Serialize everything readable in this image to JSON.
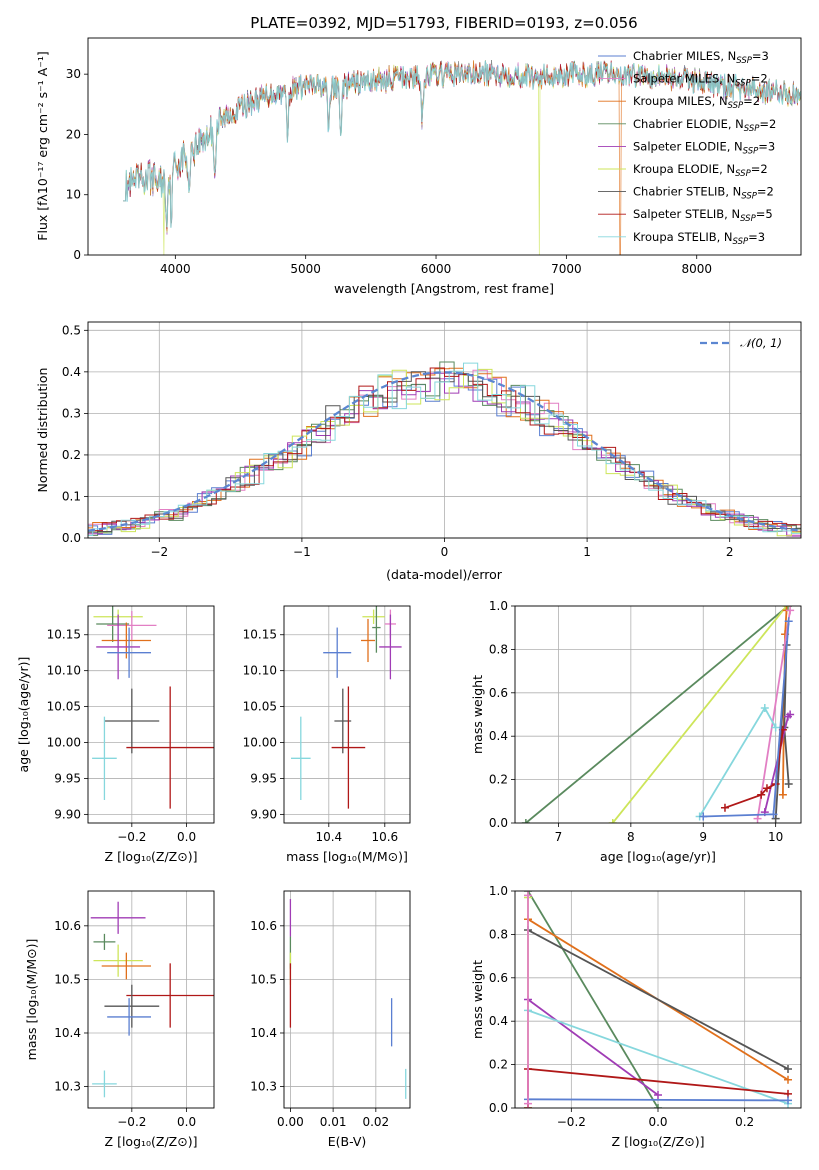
{
  "colors": {
    "chabrier_miles": "#5b7fd1",
    "salpeter_miles": "#e27fc4",
    "kroupa_miles": "#e0701c",
    "chabrier_elodie": "#5a8a5e",
    "salpeter_elodie": "#a03cb5",
    "kroupa_elodie": "#cde55a",
    "chabrier_stelib": "#555555",
    "salpeter_stelib": "#b01818",
    "kroupa_stelib": "#86d7dd",
    "normal": "#5b86d1"
  },
  "chart_data": [
    {
      "id": "spectrum",
      "type": "line",
      "title": "PLATE=0392, MJD=51793, FIBERID=0193, z=0.056",
      "xlabel": "wavelength [Angstrom, rest frame]",
      "ylabel": "Flux [fλ10⁻¹⁷ erg cm⁻² s⁻¹ A⁻¹]",
      "xlim": [
        3330,
        8800
      ],
      "ylim": [
        0,
        36
      ],
      "xticks": [
        "4000",
        "5000",
        "6000",
        "7000",
        "8000"
      ],
      "yticks": [
        "0",
        "10",
        "20",
        "30"
      ],
      "grid": false,
      "legend_position": "top-right",
      "legend": [
        "Chabrier MILES, N_SSP=3",
        "Salpeter MILES, N_SSP=2",
        "Kroupa MILES, N_SSP=2",
        "Chabrier ELODIE, N_SSP=2",
        "Salpeter ELODIE, N_SSP=3",
        "Kroupa ELODIE, N_SSP=2",
        "Chabrier STELIB, N_SSP=2",
        "Salpeter STELIB, N_SSP=5",
        "Kroupa STELIB, N_SSP=3"
      ],
      "continuum": [
        [
          3600,
          11
        ],
        [
          3700,
          12
        ],
        [
          3800,
          13
        ],
        [
          3900,
          12
        ],
        [
          4000,
          15
        ],
        [
          4100,
          17
        ],
        [
          4200,
          19
        ],
        [
          4300,
          21
        ],
        [
          4400,
          23
        ],
        [
          4500,
          24.5
        ],
        [
          4600,
          25.5
        ],
        [
          4700,
          26.5
        ],
        [
          4800,
          27
        ],
        [
          4900,
          27.5
        ],
        [
          5000,
          28
        ],
        [
          5100,
          28
        ],
        [
          5200,
          27.5
        ],
        [
          5300,
          28
        ],
        [
          5400,
          28.5
        ],
        [
          5500,
          29
        ],
        [
          5600,
          29
        ],
        [
          5700,
          29.5
        ],
        [
          5800,
          29.5
        ],
        [
          5900,
          29.5
        ],
        [
          6000,
          30
        ],
        [
          6200,
          30
        ],
        [
          6400,
          30
        ],
        [
          6600,
          30
        ],
        [
          6800,
          29.5
        ],
        [
          7000,
          30
        ],
        [
          7200,
          30
        ],
        [
          7400,
          30
        ],
        [
          7600,
          30
        ],
        [
          7800,
          29.5
        ],
        [
          8000,
          29
        ],
        [
          8200,
          28
        ],
        [
          8400,
          27.5
        ],
        [
          8600,
          27
        ],
        [
          8800,
          26.5
        ]
      ],
      "absorption_lines": [
        3934,
        3969,
        4102,
        4304,
        4861,
        5175,
        5270,
        5893
      ],
      "masked_dips": [
        {
          "series": "kroupa_elodie",
          "x": 3912,
          "y": 0
        },
        {
          "series": "kroupa_elodie",
          "x": 6790,
          "y": 0
        },
        {
          "series": "kroupa_miles",
          "x": 7413,
          "y": 0
        }
      ]
    },
    {
      "id": "residuals",
      "type": "histogram",
      "xlabel": "(data-model)/error",
      "ylabel": "Normed distribution",
      "xlim": [
        -2.5,
        2.5
      ],
      "ylim": [
        0,
        0.52
      ],
      "xticks": [
        "−2",
        "−1",
        "0",
        "1",
        "2"
      ],
      "yticks": [
        "0.0",
        "0.1",
        "0.2",
        "0.3",
        "0.4",
        "0.5"
      ],
      "grid": true,
      "bin_width": 0.1,
      "legend_position": "top-right",
      "legend": [
        "𝒩(0, 1)"
      ]
    },
    {
      "id": "age_vs_Z",
      "type": "errorbar",
      "xlabel": "Z [log₁₀(Z/Z⊙)]",
      "ylabel": "age  [log₁₀(age/yr)]",
      "xlim": [
        -0.36,
        0.1
      ],
      "ylim": [
        9.888,
        10.19
      ],
      "xticks": [
        {
          "v": -0.2,
          "t": "−0.2"
        },
        {
          "v": 0.0,
          "t": "0.0"
        }
      ],
      "yticks": [
        {
          "v": 9.9,
          "t": "9.90"
        },
        {
          "v": 9.95,
          "t": "9.95"
        },
        {
          "v": 10.0,
          "t": "10.00"
        },
        {
          "v": 10.05,
          "t": "10.05"
        },
        {
          "v": 10.1,
          "t": "10.10"
        },
        {
          "v": 10.15,
          "t": "10.15"
        }
      ],
      "points": [
        {
          "s": "kroupa_elodie",
          "x": -0.25,
          "xe": 0.09,
          "y": 10.175,
          "ye": 0.01
        },
        {
          "s": "chabrier_elodie",
          "x": -0.27,
          "xe": 0.06,
          "y": 10.165,
          "ye": 0.025
        },
        {
          "s": "salpeter_miles",
          "x": -0.2,
          "xe": 0.09,
          "y": 10.163,
          "ye": 0.02
        },
        {
          "s": "kroupa_miles",
          "x": -0.22,
          "xe": 0.09,
          "y": 10.142,
          "ye": 0.025
        },
        {
          "s": "salpeter_elodie",
          "x": -0.25,
          "xe": 0.08,
          "y": 10.133,
          "ye": 0.045
        },
        {
          "s": "chabrier_miles",
          "x": -0.21,
          "xe": 0.08,
          "y": 10.125,
          "ye": 0.035
        },
        {
          "s": "chabrier_stelib",
          "x": -0.2,
          "xe": 0.1,
          "y": 10.03,
          "ye": 0.045
        },
        {
          "s": "salpeter_stelib",
          "x": -0.06,
          "xe": 0.16,
          "y": 9.993,
          "ye": 0.085
        },
        {
          "s": "kroupa_stelib",
          "x": -0.3,
          "xe": 0.045,
          "y": 9.978,
          "ye": 0.058
        }
      ]
    },
    {
      "id": "age_vs_mass",
      "type": "errorbar",
      "xlabel": "mass [log₁₀(M/M⊙)]",
      "xlim": [
        10.24,
        10.69
      ],
      "ylim": [
        9.888,
        10.19
      ],
      "xticks": [
        {
          "v": 10.4,
          "t": "10.4"
        },
        {
          "v": 10.6,
          "t": "10.6"
        }
      ],
      "yticks": [
        {
          "v": 9.9,
          "t": "9.90"
        },
        {
          "v": 9.95,
          "t": "9.95"
        },
        {
          "v": 10.0,
          "t": "10.00"
        },
        {
          "v": 10.05,
          "t": "10.05"
        },
        {
          "v": 10.1,
          "t": "10.10"
        },
        {
          "v": 10.15,
          "t": "10.15"
        }
      ],
      "points": [
        {
          "s": "kroupa_elodie",
          "x": 10.56,
          "xe": 0.04,
          "y": 10.175,
          "ye": 0.01
        },
        {
          "s": "chabrier_elodie",
          "x": 10.57,
          "xe": 0.015,
          "y": 10.16,
          "ye": 0.035
        },
        {
          "s": "salpeter_miles",
          "x": 10.62,
          "xe": 0.02,
          "y": 10.165,
          "ye": 0.02
        },
        {
          "s": "kroupa_miles",
          "x": 10.54,
          "xe": 0.025,
          "y": 10.142,
          "ye": 0.03
        },
        {
          "s": "salpeter_elodie",
          "x": 10.62,
          "xe": 0.04,
          "y": 10.133,
          "ye": 0.045
        },
        {
          "s": "chabrier_miles",
          "x": 10.43,
          "xe": 0.05,
          "y": 10.125,
          "ye": 0.035
        },
        {
          "s": "chabrier_stelib",
          "x": 10.45,
          "xe": 0.03,
          "y": 10.03,
          "ye": 0.045
        },
        {
          "s": "salpeter_stelib",
          "x": 10.47,
          "xe": 0.06,
          "y": 9.993,
          "ye": 0.085
        },
        {
          "s": "kroupa_stelib",
          "x": 10.3,
          "xe": 0.035,
          "y": 9.978,
          "ye": 0.058
        }
      ]
    },
    {
      "id": "weight_vs_age",
      "type": "line",
      "xlabel": "age  [log₁₀(age/yr)]",
      "ylabel": "mass weight",
      "xlim": [
        6.4,
        10.35
      ],
      "ylim": [
        0,
        1.0
      ],
      "grid": true,
      "xticks": [
        {
          "v": 7,
          "t": "7"
        },
        {
          "v": 8,
          "t": "8"
        },
        {
          "v": 9,
          "t": "9"
        },
        {
          "v": 10,
          "t": "10"
        }
      ],
      "yticks": [
        {
          "v": 0,
          "t": "0.0"
        },
        {
          "v": 0.2,
          "t": "0.2"
        },
        {
          "v": 0.4,
          "t": "0.4"
        },
        {
          "v": 0.6,
          "t": "0.6"
        },
        {
          "v": 0.8,
          "t": "0.8"
        },
        {
          "v": 1.0,
          "t": "1.0"
        }
      ],
      "series": [
        {
          "s": "chabrier_elodie",
          "x": [
            6.55,
            10.17
          ],
          "y": [
            0.0,
            1.0
          ]
        },
        {
          "s": "kroupa_elodie",
          "x": [
            7.75,
            10.15
          ],
          "y": [
            0.0,
            1.0
          ]
        },
        {
          "s": "kroupa_miles",
          "x": [
            10.1,
            10.13,
            10.15
          ],
          "y": [
            0.13,
            0.87,
            0.98
          ]
        },
        {
          "s": "chabrier_stelib",
          "x": [
            10.0,
            10.15,
            10.12,
            10.18
          ],
          "y": [
            0.02,
            0.82,
            0.44,
            0.18
          ]
        },
        {
          "s": "salpeter_elodie",
          "x": [
            9.85,
            10.17,
            10.2
          ],
          "y": [
            0.05,
            0.49,
            0.5
          ]
        },
        {
          "s": "salpeter_miles",
          "x": [
            9.75,
            10.2
          ],
          "y": [
            0.02,
            0.98
          ]
        },
        {
          "s": "kroupa_stelib",
          "x": [
            8.95,
            9.85,
            10.0
          ],
          "y": [
            0.03,
            0.53,
            0.44
          ]
        },
        {
          "s": "salpeter_stelib",
          "x": [
            9.3,
            9.8,
            9.88,
            10.0,
            10.1
          ],
          "y": [
            0.07,
            0.13,
            0.16,
            0.18,
            0.43
          ]
        },
        {
          "s": "chabrier_miles",
          "x": [
            9.0,
            9.97,
            10.18
          ],
          "y": [
            0.03,
            0.04,
            0.93
          ]
        }
      ]
    },
    {
      "id": "mass_vs_Z",
      "type": "errorbar",
      "xlabel": "Z [log₁₀(Z/Z⊙)]",
      "ylabel": "mass [log₁₀(M/M⊙)]",
      "xlim": [
        -0.36,
        0.1
      ],
      "ylim": [
        10.26,
        10.665
      ],
      "xticks": [
        {
          "v": -0.2,
          "t": "−0.2"
        },
        {
          "v": 0.0,
          "t": "0.0"
        }
      ],
      "yticks": [
        {
          "v": 10.3,
          "t": "10.3"
        },
        {
          "v": 10.4,
          "t": "10.4"
        },
        {
          "v": 10.5,
          "t": "10.5"
        },
        {
          "v": 10.6,
          "t": "10.6"
        }
      ],
      "points": [
        {
          "s": "salpeter_elodie",
          "x": -0.25,
          "xe": 0.1,
          "y": 10.615,
          "ye": 0.03
        },
        {
          "s": "chabrier_elodie",
          "x": -0.3,
          "xe": 0.04,
          "y": 10.57,
          "ye": 0.015
        },
        {
          "s": "kroupa_elodie",
          "x": -0.25,
          "xe": 0.09,
          "y": 10.535,
          "ye": 0.03
        },
        {
          "s": "kroupa_miles",
          "x": -0.22,
          "xe": 0.09,
          "y": 10.525,
          "ye": 0.025
        },
        {
          "s": "salpeter_stelib",
          "x": -0.06,
          "xe": 0.16,
          "y": 10.47,
          "ye": 0.06
        },
        {
          "s": "chabrier_stelib",
          "x": -0.2,
          "xe": 0.1,
          "y": 10.45,
          "ye": 0.04
        },
        {
          "s": "chabrier_miles",
          "x": -0.21,
          "xe": 0.08,
          "y": 10.43,
          "ye": 0.035
        },
        {
          "s": "kroupa_stelib",
          "x": -0.3,
          "xe": 0.045,
          "y": 10.305,
          "ye": 0.025
        }
      ]
    },
    {
      "id": "mass_vs_EBV",
      "type": "errorbar",
      "xlabel": "E(B-V)",
      "xlim": [
        -0.0015,
        0.028
      ],
      "ylim": [
        10.26,
        10.665
      ],
      "xticks": [
        {
          "v": 0.0,
          "t": "0.00"
        },
        {
          "v": 0.01,
          "t": "0.01"
        },
        {
          "v": 0.02,
          "t": "0.02"
        }
      ],
      "yticks": [
        {
          "v": 10.3,
          "t": "10.3"
        },
        {
          "v": 10.4,
          "t": "10.4"
        },
        {
          "v": 10.5,
          "t": "10.5"
        },
        {
          "v": 10.6,
          "t": "10.6"
        }
      ],
      "points": [
        {
          "s": "salpeter_elodie",
          "x": 0.0,
          "xe": 0,
          "y": 10.615,
          "ye": 0.035
        },
        {
          "s": "chabrier_elodie",
          "x": 0.0,
          "xe": 0,
          "y": 10.55,
          "ye": 0.03
        },
        {
          "s": "kroupa_elodie",
          "x": 0.0,
          "xe": 0,
          "y": 10.52,
          "ye": 0.03
        },
        {
          "s": "salpeter_stelib",
          "x": 0.0,
          "xe": 0,
          "y": 10.47,
          "ye": 0.06
        },
        {
          "s": "chabrier_miles",
          "x": 0.0237,
          "xe": 0,
          "y": 10.42,
          "ye": 0.045
        },
        {
          "s": "kroupa_stelib",
          "x": 0.027,
          "xe": 0,
          "y": 10.305,
          "ye": 0.028
        }
      ]
    },
    {
      "id": "weight_vs_Z",
      "type": "line",
      "xlabel": "Z [log₁₀(Z/Z⊙)]",
      "ylabel": "mass weight",
      "xlim": [
        -0.33,
        0.33
      ],
      "ylim": [
        0,
        1.0
      ],
      "grid": true,
      "xticks": [
        {
          "v": -0.2,
          "t": "−0.2"
        },
        {
          "v": 0.0,
          "t": "0.0"
        },
        {
          "v": 0.2,
          "t": "0.2"
        }
      ],
      "yticks": [
        {
          "v": 0,
          "t": "0.0"
        },
        {
          "v": 0.2,
          "t": "0.2"
        },
        {
          "v": 0.4,
          "t": "0.4"
        },
        {
          "v": 0.6,
          "t": "0.6"
        },
        {
          "v": 0.8,
          "t": "0.8"
        },
        {
          "v": 1.0,
          "t": "1.0"
        }
      ],
      "series": [
        {
          "s": "chabrier_elodie",
          "x": [
            -0.3,
            0.0
          ],
          "y": [
            1.0,
            0.0
          ]
        },
        {
          "s": "kroupa_elodie",
          "x": [
            -0.3,
            -0.3
          ],
          "y": [
            0.0,
            0.97
          ]
        },
        {
          "s": "kroupa_miles",
          "x": [
            -0.3,
            0.3
          ],
          "y": [
            0.87,
            0.13
          ]
        },
        {
          "s": "chabrier_stelib",
          "x": [
            -0.3,
            0.3
          ],
          "y": [
            0.82,
            0.18
          ]
        },
        {
          "s": "salpeter_elodie",
          "x": [
            -0.3,
            0.0
          ],
          "y": [
            0.5,
            0.06
          ]
        },
        {
          "s": "kroupa_stelib",
          "x": [
            -0.3,
            0.3
          ],
          "y": [
            0.45,
            0.02
          ]
        },
        {
          "s": "salpeter_stelib",
          "x": [
            -0.3,
            -0.3,
            0.3
          ],
          "y": [
            0.0,
            0.18,
            0.065
          ]
        },
        {
          "s": "chabrier_miles",
          "x": [
            -0.3,
            0.3
          ],
          "y": [
            0.04,
            0.035
          ]
        },
        {
          "s": "salpeter_miles",
          "x": [
            -0.3,
            -0.3
          ],
          "y": [
            0.02,
            0.98
          ]
        }
      ]
    }
  ]
}
